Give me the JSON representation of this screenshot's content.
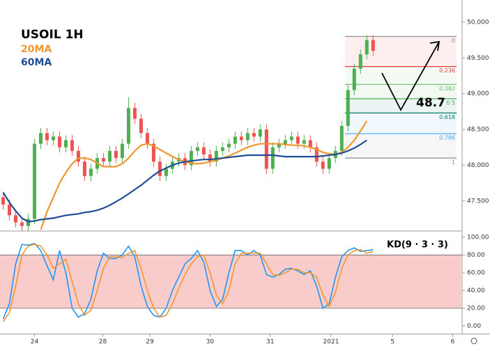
{
  "chart_data": [
    {
      "type": "candlestick",
      "title": "USOIL 1H",
      "up_color": "#4caf50",
      "down_color": "#ef5350",
      "xlim": [
        -0.5,
        73.2
      ],
      "ylim": [
        47.08,
        50.31
      ],
      "yticks": [
        {
          "value": 47.5,
          "label": "47.500"
        },
        {
          "value": 48,
          "label": "48.000"
        },
        {
          "value": 48.5,
          "label": "48.500"
        },
        {
          "value": 49,
          "label": "49.000"
        },
        {
          "value": 49.5,
          "label": "49.500"
        },
        {
          "value": 50,
          "label": "50.000"
        }
      ],
      "open": [
        47.55,
        47.45,
        47.3,
        47.2,
        47.15,
        47.25,
        48.3,
        48.45,
        48.35,
        48.4,
        48.25,
        48.35,
        48.2,
        48.05,
        47.85,
        47.95,
        48.1,
        48.05,
        48.2,
        48.1,
        48.3,
        48.8,
        48.65,
        48.45,
        48.3,
        48.05,
        47.85,
        47.95,
        48.05,
        48.1,
        48.0,
        48.2,
        48.25,
        48.15,
        48.05,
        48.2,
        48.25,
        48.3,
        48.4,
        48.35,
        48.45,
        48.4,
        48.5,
        47.95,
        48.25,
        48.3,
        48.35,
        48.4,
        48.3,
        48.35,
        48.25,
        48.05,
        47.95,
        48.1,
        48.2,
        48.55,
        49.05,
        49.35,
        49.55,
        49.75
      ],
      "high": [
        47.62,
        47.52,
        47.37,
        47.27,
        47.32,
        48.37,
        48.52,
        48.52,
        48.47,
        48.47,
        48.42,
        48.42,
        48.27,
        48.12,
        48.02,
        48.17,
        48.17,
        48.27,
        48.27,
        48.37,
        48.95,
        48.87,
        48.72,
        48.52,
        48.37,
        48.12,
        48.02,
        48.12,
        48.17,
        48.17,
        48.27,
        48.32,
        48.32,
        48.22,
        48.27,
        48.32,
        48.37,
        48.47,
        48.47,
        48.52,
        48.52,
        48.57,
        48.57,
        48.32,
        48.37,
        48.42,
        48.47,
        48.47,
        48.42,
        48.42,
        48.32,
        48.12,
        48.17,
        48.27,
        48.62,
        49.12,
        49.42,
        49.62,
        49.82,
        49.82
      ],
      "low": [
        47.38,
        47.23,
        47.13,
        47.08,
        47.08,
        47.18,
        48.23,
        48.28,
        48.28,
        48.18,
        48.18,
        48.13,
        47.98,
        47.78,
        47.78,
        47.88,
        47.98,
        47.98,
        48.03,
        48.03,
        48.23,
        48.58,
        48.38,
        48.23,
        47.98,
        47.78,
        47.78,
        47.88,
        47.98,
        47.93,
        47.93,
        48.13,
        48.08,
        47.98,
        47.98,
        48.13,
        48.18,
        48.23,
        48.28,
        48.28,
        48.33,
        48.33,
        47.88,
        47.88,
        48.18,
        48.23,
        48.28,
        48.23,
        48.23,
        48.18,
        47.98,
        47.88,
        47.88,
        48.03,
        48.13,
        48.48,
        48.98,
        49.28,
        49.48,
        49.53
      ],
      "close": [
        47.45,
        47.3,
        47.2,
        47.15,
        47.25,
        48.3,
        48.45,
        48.35,
        48.4,
        48.25,
        48.35,
        48.2,
        48.05,
        47.85,
        47.95,
        48.1,
        48.05,
        48.2,
        48.1,
        48.3,
        48.8,
        48.65,
        48.45,
        48.3,
        48.05,
        47.85,
        47.95,
        48.05,
        48.1,
        48.0,
        48.2,
        48.25,
        48.15,
        48.05,
        48.2,
        48.25,
        48.3,
        48.4,
        48.35,
        48.45,
        48.4,
        48.5,
        47.95,
        48.25,
        48.3,
        48.35,
        48.4,
        48.3,
        48.35,
        48.25,
        48.05,
        47.95,
        48.1,
        48.2,
        48.55,
        49.05,
        49.35,
        49.55,
        49.75,
        49.6
      ],
      "series": [
        {
          "name": "20MA",
          "color": "#f0972e",
          "values": [
            null,
            null,
            null,
            null,
            null,
            null,
            47.1,
            47.35,
            47.55,
            47.75,
            47.9,
            48.02,
            48.1,
            48.1,
            48.08,
            48.03,
            47.98,
            47.98,
            47.98,
            48.02,
            48.1,
            48.2,
            48.28,
            48.3,
            48.27,
            48.22,
            48.17,
            48.12,
            48.08,
            48.05,
            48.03,
            48.02,
            48.03,
            48.05,
            48.07,
            48.1,
            48.13,
            48.17,
            48.21,
            48.25,
            48.28,
            48.3,
            48.3,
            48.3,
            48.3,
            48.29,
            48.28,
            48.28,
            48.27,
            48.25,
            48.22,
            48.18,
            48.16,
            48.15,
            48.18,
            48.25,
            48.35,
            48.48,
            48.62,
            null
          ]
        },
        {
          "name": "60MA",
          "color": "#1f4e96",
          "values": [
            47.62,
            47.48,
            47.36,
            47.26,
            47.21,
            47.22,
            47.24,
            47.25,
            47.26,
            47.28,
            47.3,
            47.31,
            47.32,
            47.34,
            47.35,
            47.37,
            47.4,
            47.44,
            47.49,
            47.54,
            47.6,
            47.66,
            47.72,
            47.79,
            47.86,
            47.92,
            47.96,
            48.0,
            48.03,
            48.05,
            48.06,
            48.07,
            48.08,
            48.08,
            48.09,
            48.1,
            48.11,
            48.12,
            48.13,
            48.14,
            48.14,
            48.14,
            48.14,
            48.14,
            48.13,
            48.12,
            48.12,
            48.12,
            48.12,
            48.12,
            48.12,
            48.13,
            48.14,
            48.15,
            48.17,
            48.2,
            48.24,
            48.29,
            48.35,
            null
          ]
        }
      ],
      "fib": {
        "levels": [
          0,
          0.236,
          0.382,
          0.5,
          0.618,
          0.786,
          1
        ],
        "prices": [
          49.8,
          49.38,
          49.13,
          48.93,
          48.73,
          48.44,
          48.1
        ],
        "colors": [
          "#888888",
          "#e53935",
          "#66bb6a",
          "#4caf50",
          "#00796b",
          "#42a5f5",
          "#888888"
        ]
      },
      "annotation": "48.7"
    },
    {
      "type": "line",
      "title": "KD(9 · 3 · 3)",
      "xlim": [
        -0.5,
        73.2
      ],
      "ylim": [
        -9,
        107
      ],
      "yticks": [
        {
          "value": 0,
          "label": "0.00"
        },
        {
          "value": 20,
          "label": "20.00"
        },
        {
          "value": 40,
          "label": "40.00"
        },
        {
          "value": 60,
          "label": "60.00"
        },
        {
          "value": 80,
          "label": "80.00"
        },
        {
          "value": 100,
          "label": "100.00"
        }
      ],
      "band": [
        20,
        80
      ],
      "band_color": "#f9cccc",
      "xticks": [
        {
          "value": 5,
          "label": "24"
        },
        {
          "value": 15.9,
          "label": "28"
        },
        {
          "value": 23.4,
          "label": "29"
        },
        {
          "value": 33,
          "label": "30"
        },
        {
          "value": 42.6,
          "label": "31"
        },
        {
          "value": 52.3,
          "label": "2021"
        },
        {
          "value": 62.1,
          "label": "5"
        },
        {
          "value": 71.7,
          "label": "6"
        }
      ],
      "series": [
        {
          "color": "#2196f3",
          "values": [
            8,
            25,
            70,
            92,
            91,
            93,
            85,
            68,
            52,
            85,
            60,
            20,
            10,
            14,
            30,
            62,
            82,
            76,
            76,
            80,
            90,
            78,
            45,
            22,
            12,
            10,
            20,
            40,
            55,
            70,
            76,
            85,
            72,
            40,
            22,
            30,
            60,
            85,
            85,
            80,
            85,
            80,
            58,
            55,
            58,
            64,
            65,
            62,
            58,
            62,
            45,
            20,
            25,
            55,
            78,
            85,
            88,
            84,
            85,
            86
          ]
        },
        {
          "color": "#f0972e",
          "values": [
            5,
            15,
            45,
            80,
            90,
            92,
            90,
            80,
            65,
            70,
            75,
            50,
            25,
            12,
            18,
            40,
            65,
            78,
            78,
            77,
            82,
            85,
            65,
            40,
            20,
            10,
            12,
            25,
            42,
            58,
            70,
            78,
            80,
            60,
            35,
            25,
            40,
            70,
            82,
            82,
            82,
            82,
            70,
            58,
            57,
            60,
            64,
            64,
            60,
            60,
            55,
            35,
            22,
            38,
            65,
            80,
            85,
            86,
            82,
            84
          ]
        }
      ]
    }
  ]
}
